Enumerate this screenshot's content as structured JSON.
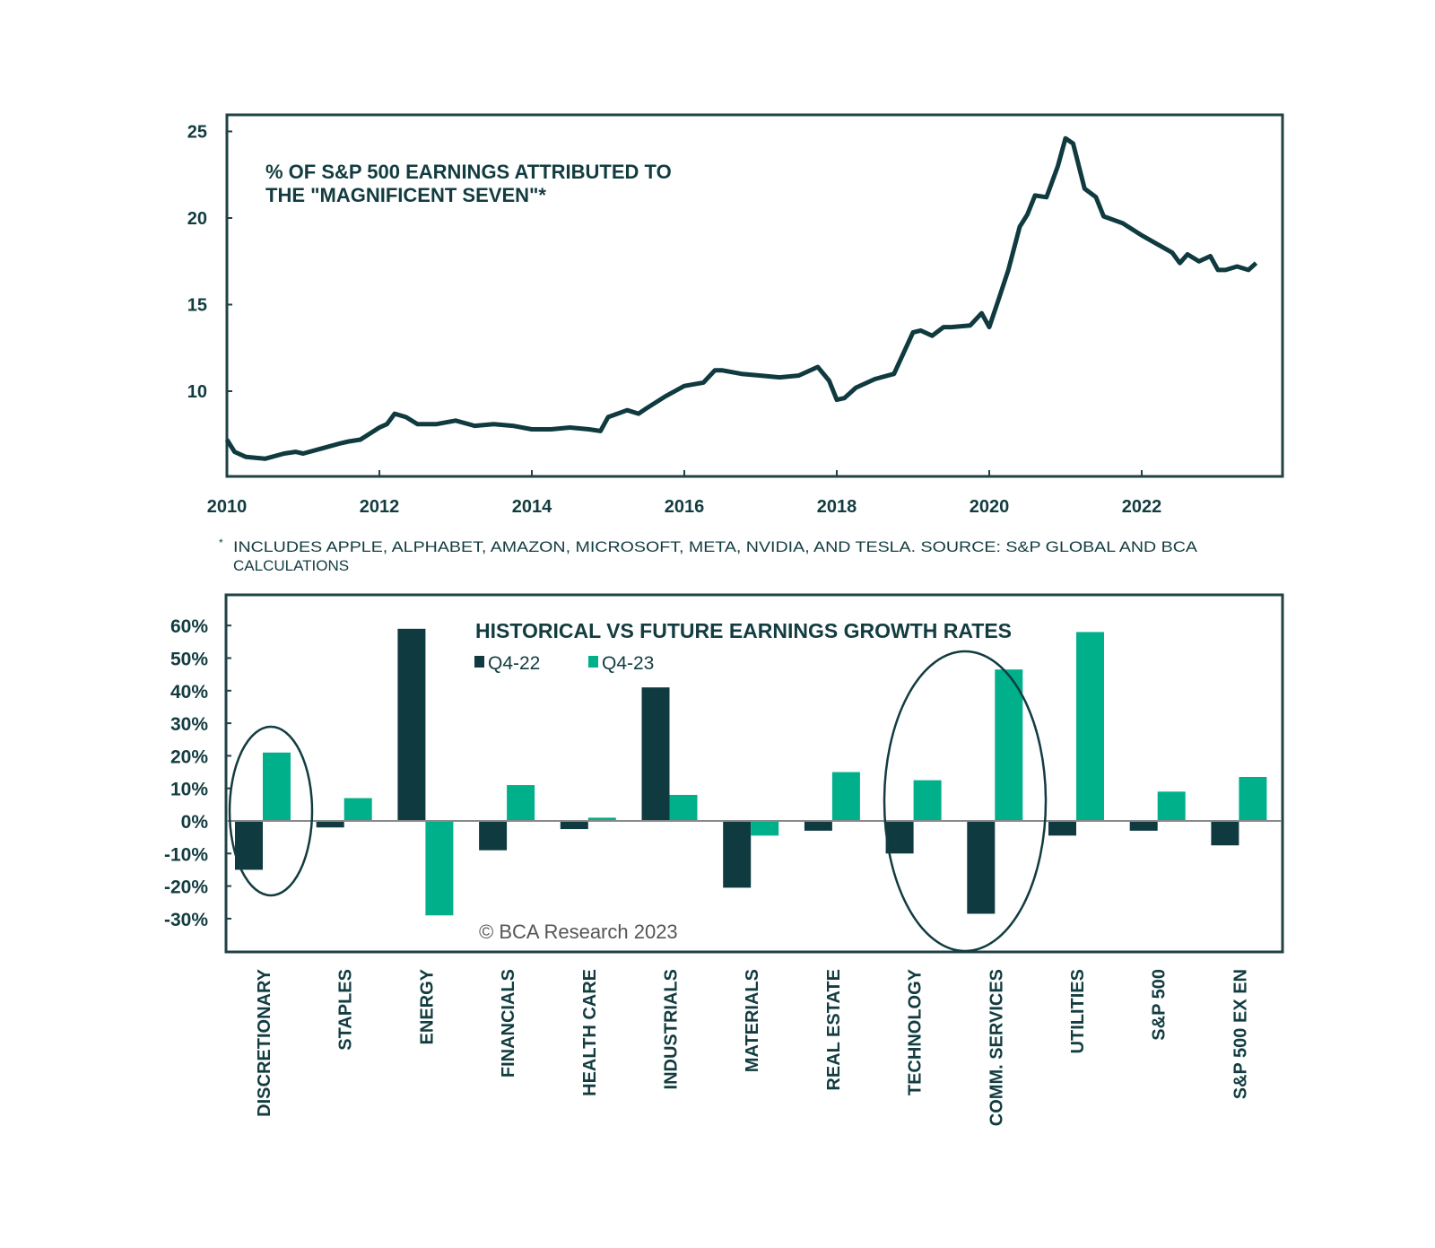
{
  "colors": {
    "dark": "#0f3a3f",
    "green": "#00b08a",
    "frame": "#1f4245",
    "zero": "#8a8a8a"
  },
  "chart_data": [
    {
      "type": "line",
      "title": "% OF S&P 500 EARNINGS ATTRIBUTED TO",
      "title_line2": "THE \"MAGNIFICENT SEVEN\"*",
      "xlabel": "",
      "ylabel": "",
      "xlim": [
        2010,
        2023.9
      ],
      "ylim": [
        5,
        25.5
      ],
      "x_ticks": [
        2010,
        2012,
        2014,
        2016,
        2018,
        2020,
        2022
      ],
      "x_tick_labels": [
        "2010",
        "2012",
        "2014",
        "2016",
        "2018",
        "2020",
        "2022"
      ],
      "y_ticks": [
        10,
        15,
        20,
        25
      ],
      "y_tick_labels": [
        "10",
        "15",
        "20",
        "25"
      ],
      "grid": false,
      "footnote_marker": "*",
      "footnote": "INCLUDES APPLE, ALPHABET, AMAZON, MICROSOFT, META, NVIDIA, AND TESLA. SOURCE: S&P GLOBAL AND BCA",
      "footnote_line2": "CALCULATIONS",
      "series": [
        {
          "name": "Magnificent Seven share of S&P 500 earnings (%)",
          "x": [
            2010.0,
            2010.1,
            2010.25,
            2010.5,
            2010.75,
            2010.9,
            2011.0,
            2011.25,
            2011.5,
            2011.6,
            2011.75,
            2012.0,
            2012.1,
            2012.2,
            2012.35,
            2012.5,
            2012.75,
            2013.0,
            2013.25,
            2013.5,
            2013.75,
            2014.0,
            2014.25,
            2014.5,
            2014.75,
            2014.9,
            2015.0,
            2015.25,
            2015.4,
            2015.5,
            2015.75,
            2016.0,
            2016.25,
            2016.4,
            2016.5,
            2016.75,
            2017.0,
            2017.25,
            2017.5,
            2017.75,
            2017.9,
            2018.0,
            2018.1,
            2018.25,
            2018.5,
            2018.75,
            2019.0,
            2019.1,
            2019.25,
            2019.4,
            2019.5,
            2019.75,
            2019.9,
            2020.0,
            2020.1,
            2020.25,
            2020.4,
            2020.5,
            2020.6,
            2020.75,
            2020.9,
            2021.0,
            2021.1,
            2021.25,
            2021.4,
            2021.5,
            2021.75,
            2022.0,
            2022.2,
            2022.4,
            2022.5,
            2022.6,
            2022.75,
            2022.9,
            2023.0,
            2023.1,
            2023.25,
            2023.4,
            2023.5
          ],
          "y": [
            7.2,
            6.5,
            6.2,
            6.1,
            6.4,
            6.5,
            6.4,
            6.7,
            7.0,
            7.1,
            7.2,
            7.9,
            8.1,
            8.7,
            8.5,
            8.1,
            8.1,
            8.3,
            8.0,
            8.1,
            8.0,
            7.8,
            7.8,
            7.9,
            7.8,
            7.7,
            8.5,
            8.9,
            8.7,
            9.0,
            9.7,
            10.3,
            10.5,
            11.2,
            11.2,
            11.0,
            10.9,
            10.8,
            10.9,
            11.4,
            10.6,
            9.5,
            9.6,
            10.2,
            10.7,
            11.0,
            13.4,
            13.5,
            13.2,
            13.7,
            13.7,
            13.8,
            14.5,
            13.7,
            15.0,
            17.0,
            19.5,
            20.2,
            21.3,
            21.2,
            23.0,
            24.6,
            24.3,
            21.7,
            21.2,
            20.1,
            19.7,
            19.0,
            18.5,
            18.0,
            17.4,
            17.9,
            17.5,
            17.8,
            17.0,
            17.0,
            17.2,
            17.0,
            17.4
          ]
        }
      ]
    },
    {
      "type": "bar",
      "title": "HISTORICAL VS FUTURE EARNINGS GROWTH RATES",
      "xlabel": "",
      "ylabel": "",
      "ylim": [
        -40,
        70
      ],
      "y_ticks": [
        60,
        50,
        40,
        30,
        20,
        10,
        0,
        -10,
        -20,
        -30
      ],
      "y_tick_labels": [
        "60%",
        "50%",
        "40%",
        "30%",
        "20%",
        "10%",
        "0%",
        "-10%",
        "-20%",
        "-30%"
      ],
      "grid": false,
      "legend_placement": "top-left",
      "categories": [
        "DISCRETIONARY",
        "STAPLES",
        "ENERGY",
        "FINANCIALS",
        "HEALTH CARE",
        "INDUSTRIALS",
        "MATERIALS",
        "REAL ESTATE",
        "TECHNOLOGY",
        "COMM. SERVICES",
        "UTILITIES",
        "S&P 500",
        "S&P 500 EX EN"
      ],
      "series": [
        {
          "name": "Q4-22",
          "color": "#0f3a3f",
          "values": [
            -15,
            -2,
            59,
            -9,
            -2.5,
            41,
            -20.5,
            -3,
            -10,
            -28.5,
            -4.5,
            -3,
            -7.5
          ]
        },
        {
          "name": "Q4-23",
          "color": "#00b08a",
          "values": [
            21,
            7,
            -29,
            11,
            1,
            8,
            -4.5,
            15,
            12.5,
            46.5,
            58,
            9,
            13.5
          ]
        }
      ],
      "annotations": [
        {
          "type": "ellipse",
          "around": "DISCRETIONARY"
        },
        {
          "type": "ellipse",
          "around": [
            "TECHNOLOGY",
            "COMM. SERVICES"
          ]
        }
      ],
      "credit": "© BCA Research 2023"
    }
  ]
}
